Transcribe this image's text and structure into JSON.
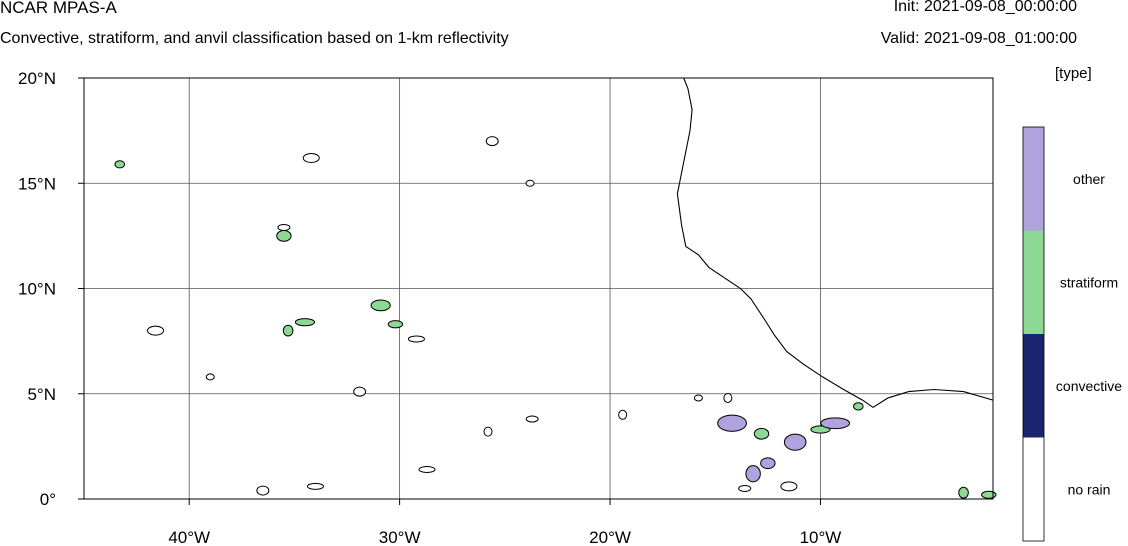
{
  "header": {
    "title": "NCAR MPAS-A",
    "subtitle": "Convective, stratiform, and anvil classification based on 1-km reflectivity",
    "init": "Init: 2021-09-08_00:00:00",
    "valid": "Valid: 2021-09-08_01:00:00"
  },
  "colorbar": {
    "unit": "[type]",
    "entries": [
      {
        "label": "other",
        "color": "#b0a3dd"
      },
      {
        "label": "stratiform",
        "color": "#8dd893"
      },
      {
        "label": "convective",
        "color": "#1a2570"
      },
      {
        "label": "no rain",
        "color": "#ffffff"
      }
    ]
  },
  "chart_data": {
    "type": "heatmap",
    "title": "NCAR MPAS-A",
    "subtitle": "Convective, stratiform, and anvil classification based on 1-km reflectivity",
    "xlim": [
      -45,
      -1.8
    ],
    "ylim": [
      0,
      20
    ],
    "xticks": [
      {
        "value": -40,
        "label": "40°W"
      },
      {
        "value": -30,
        "label": "30°W"
      },
      {
        "value": -20,
        "label": "20°W"
      },
      {
        "value": -10,
        "label": "10°W"
      }
    ],
    "yticks": [
      {
        "value": 0,
        "label": "0°"
      },
      {
        "value": 5,
        "label": "5°N"
      },
      {
        "value": 10,
        "label": "10°N"
      },
      {
        "value": 15,
        "label": "15°N"
      },
      {
        "value": 20,
        "label": "20°N"
      }
    ],
    "grid": true,
    "legend": "right",
    "categories": [
      "other",
      "stratiform",
      "convective",
      "no rain"
    ],
    "coastline": [
      [
        -16.5,
        20
      ],
      [
        -16.3,
        19.5
      ],
      [
        -16.1,
        18.5
      ],
      [
        -16.2,
        17.5
      ],
      [
        -16.4,
        16.5
      ],
      [
        -16.6,
        15.5
      ],
      [
        -16.8,
        14.5
      ],
      [
        -16.6,
        13.0
      ],
      [
        -16.4,
        12.0
      ],
      [
        -15.8,
        11.6
      ],
      [
        -15.3,
        11.0
      ],
      [
        -14.7,
        10.6
      ],
      [
        -13.8,
        10.0
      ],
      [
        -13.3,
        9.5
      ],
      [
        -12.7,
        8.6
      ],
      [
        -12.2,
        7.8
      ],
      [
        -11.6,
        7.0
      ],
      [
        -10.8,
        6.4
      ],
      [
        -9.9,
        5.8
      ],
      [
        -8.9,
        5.2
      ],
      [
        -8.0,
        4.7
      ],
      [
        -7.5,
        4.35
      ],
      [
        -6.8,
        4.8
      ],
      [
        -5.8,
        5.1
      ],
      [
        -4.6,
        5.2
      ],
      [
        -3.2,
        5.1
      ],
      [
        -1.8,
        4.7
      ]
    ],
    "cells": [
      {
        "type": "stratiform",
        "lon": -43.3,
        "lat": 15.9
      },
      {
        "type": "stratiform",
        "lon": -35.5,
        "lat": 12.5
      },
      {
        "type": "stratiform",
        "lon": -34.5,
        "lat": 8.4
      },
      {
        "type": "stratiform",
        "lon": -35.3,
        "lat": 8.0
      },
      {
        "type": "stratiform",
        "lon": -30.2,
        "lat": 8.3
      },
      {
        "type": "stratiform",
        "lon": -30.9,
        "lat": 9.2
      },
      {
        "type": "stratiform",
        "lon": -8.2,
        "lat": 4.4
      },
      {
        "type": "stratiform",
        "lon": -12.8,
        "lat": 3.1
      },
      {
        "type": "stratiform",
        "lon": -10.0,
        "lat": 3.3
      },
      {
        "type": "stratiform",
        "lon": -3.2,
        "lat": 0.3
      },
      {
        "type": "stratiform",
        "lon": -2.0,
        "lat": 0.2
      },
      {
        "type": "other",
        "lon": -14.2,
        "lat": 3.6
      },
      {
        "type": "other",
        "lon": -12.5,
        "lat": 1.7
      },
      {
        "type": "other",
        "lon": -11.2,
        "lat": 2.7
      },
      {
        "type": "other",
        "lon": -9.3,
        "lat": 3.6
      },
      {
        "type": "other",
        "lon": -13.2,
        "lat": 1.2
      },
      {
        "type": "no rain",
        "lon": -35.5,
        "lat": 12.9
      },
      {
        "type": "no rain",
        "lon": -41.6,
        "lat": 8.0
      },
      {
        "type": "no rain",
        "lon": -23.8,
        "lat": 15.0
      },
      {
        "type": "no rain",
        "lon": -25.6,
        "lat": 17.0
      },
      {
        "type": "no rain",
        "lon": -29.2,
        "lat": 7.6
      },
      {
        "type": "no rain",
        "lon": -14.4,
        "lat": 4.8
      },
      {
        "type": "no rain",
        "lon": -13.6,
        "lat": 0.5
      },
      {
        "type": "no rain",
        "lon": -11.5,
        "lat": 0.6
      },
      {
        "type": "no rain",
        "lon": -15.8,
        "lat": 4.8
      },
      {
        "type": "no rain",
        "lon": -36.5,
        "lat": 0.4
      },
      {
        "type": "no rain",
        "lon": -34.0,
        "lat": 0.6
      },
      {
        "type": "no rain",
        "lon": -19.4,
        "lat": 4.0
      },
      {
        "type": "no rain",
        "lon": -23.7,
        "lat": 3.8
      },
      {
        "type": "no rain",
        "lon": -34.2,
        "lat": 16.2
      },
      {
        "type": "no rain",
        "lon": -39.0,
        "lat": 5.8
      },
      {
        "type": "no rain",
        "lon": -31.9,
        "lat": 5.1
      },
      {
        "type": "no rain",
        "lon": -28.7,
        "lat": 1.4
      },
      {
        "type": "no rain",
        "lon": -25.8,
        "lat": 3.2
      }
    ]
  }
}
